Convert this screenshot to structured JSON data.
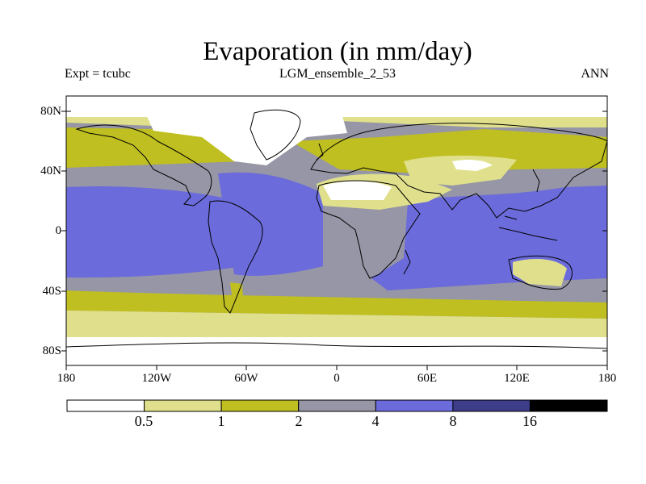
{
  "title": "Evaporation (in mm/day)",
  "subtitle_left": "Expt = tcubc",
  "subtitle_center": "LGM_ensemble_2_53",
  "subtitle_right": "ANN",
  "lat_labels": [
    "80N",
    "40N",
    "0",
    "40S",
    "80S"
  ],
  "lon_labels": [
    "180",
    "120W",
    "60W",
    "0",
    "60E",
    "120E",
    "180"
  ],
  "colorbar": {
    "thresholds": [
      "0.5",
      "1",
      "2",
      "4",
      "8",
      "16"
    ],
    "colors": [
      "#ffffff",
      "#e0e08c",
      "#bfbf21",
      "#9696a6",
      "#6b6bdb",
      "#3d3d8a",
      "#000000"
    ]
  },
  "coastline_color": "#000000"
}
